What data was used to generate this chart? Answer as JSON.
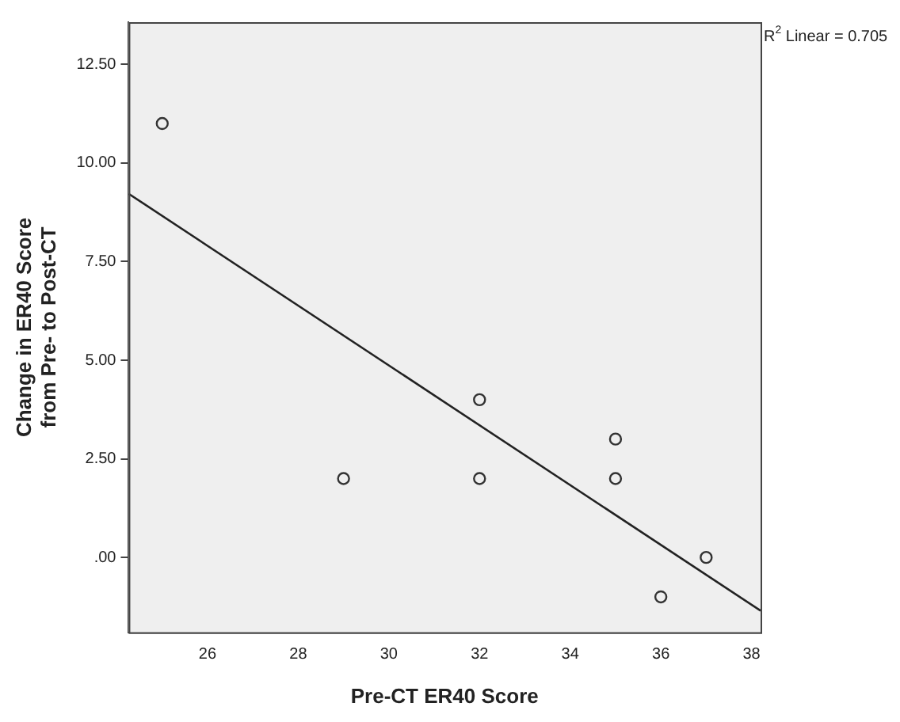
{
  "chart_data": {
    "type": "scatter",
    "xlabel": "Pre-CT ER40 Score",
    "ylabel": "Change in ER40 Score\nfrom Pre- to Post-CT",
    "annotations": [
      "R$^{2}$ Linear = 0.705"
    ],
    "series": [
      {
        "color": "#333333",
        "marker": "circle",
        "x": [
          25,
          29,
          32,
          32,
          35,
          35,
          36,
          37
        ],
        "values": [
          11,
          2,
          2,
          4,
          2,
          3,
          -1,
          0
        ]
      },
      {
        "type": "line",
        "color": "#222222",
        "marker": "none",
        "line_style": "solid",
        "x": [
          24.26,
          38.2
        ],
        "values": [
          9.22,
          -1.35
        ]
      }
    ],
    "xlim": [
      24.26,
      38.2
    ],
    "xticks": [
      26,
      28,
      30,
      32,
      34,
      36,
      38
    ],
    "ylim": [
      -1.9,
      13.57
    ],
    "yticks": [
      {
        "value": 0,
        "label": ".00"
      },
      {
        "value": 2.5,
        "label": "2.50"
      },
      {
        "value": 5,
        "label": "5.00"
      },
      {
        "value": 7.5,
        "label": "7.50"
      },
      {
        "value": 10,
        "label": "10.00"
      },
      {
        "value": 12.5,
        "label": "12.50"
      }
    ],
    "grid": false,
    "legend": false
  }
}
